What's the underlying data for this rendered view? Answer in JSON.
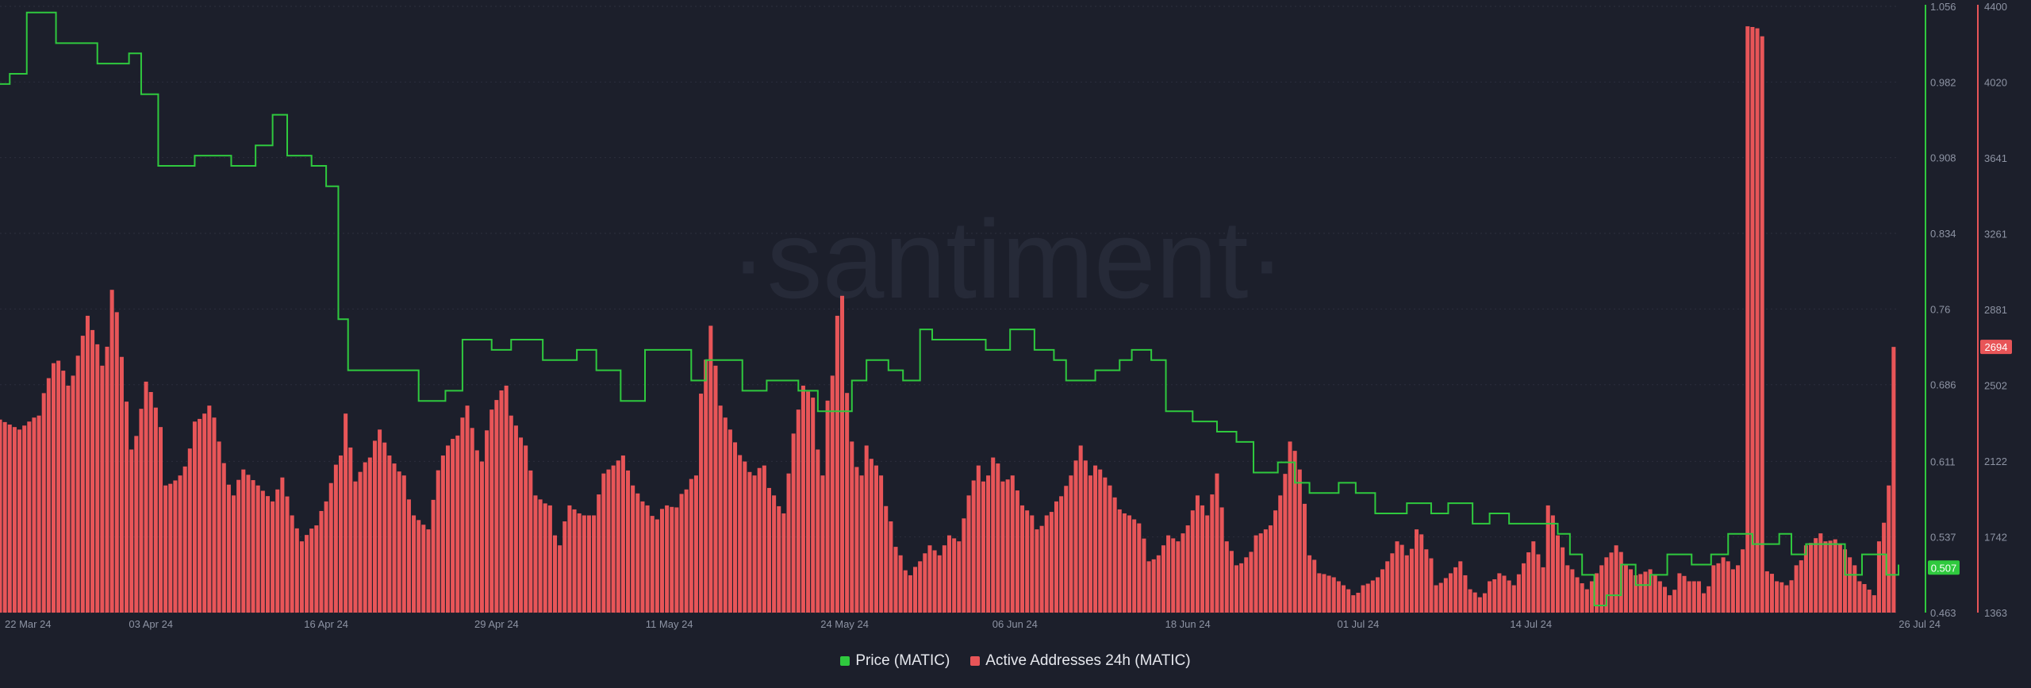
{
  "chart_data": {
    "type": "bar+line",
    "watermark": "·santiment·",
    "x_ticks": [
      "22 Mar 24",
      "03 Apr 24",
      "16 Apr 24",
      "29 Apr 24",
      "11 May 24",
      "24 May 24",
      "06 Jun 24",
      "18 Jun 24",
      "01 Jul 24",
      "14 Jul 24",
      "26 Jul 24"
    ],
    "price_axis": {
      "ticks": [
        "1.056",
        "0.982",
        "0.908",
        "0.834",
        "0.76",
        "0.686",
        "0.611",
        "0.537",
        "0.463"
      ],
      "ylim": [
        0.463,
        1.056
      ]
    },
    "addresses_axis": {
      "ticks": [
        "4400",
        "4020",
        "3641",
        "3261",
        "2881",
        "2502",
        "2122",
        "1742",
        "1363"
      ],
      "ylim": [
        1363,
        4400
      ]
    },
    "last_values": {
      "price": "0.507",
      "addresses": "2694"
    },
    "price_anchors": [
      [
        0,
        0.98
      ],
      [
        0.4,
        0.99
      ],
      [
        1.1,
        1.05
      ],
      [
        2.3,
        1.02
      ],
      [
        4.0,
        1.0
      ],
      [
        5.3,
        1.01
      ],
      [
        5.8,
        0.97
      ],
      [
        6.5,
        0.9
      ],
      [
        8.0,
        0.91
      ],
      [
        9.5,
        0.9
      ],
      [
        10.5,
        0.92
      ],
      [
        11.2,
        0.95
      ],
      [
        11.8,
        0.91
      ],
      [
        12.8,
        0.9
      ],
      [
        13.4,
        0.88
      ],
      [
        13.9,
        0.75
      ],
      [
        14.3,
        0.7
      ],
      [
        16.5,
        0.7
      ],
      [
        17.2,
        0.67
      ],
      [
        18.3,
        0.68
      ],
      [
        19.0,
        0.73
      ],
      [
        20.2,
        0.72
      ],
      [
        21.0,
        0.73
      ],
      [
        22.3,
        0.71
      ],
      [
        23.7,
        0.72
      ],
      [
        24.5,
        0.7
      ],
      [
        25.5,
        0.67
      ],
      [
        26.5,
        0.72
      ],
      [
        27.8,
        0.72
      ],
      [
        28.4,
        0.69
      ],
      [
        29.0,
        0.71
      ],
      [
        30.5,
        0.68
      ],
      [
        31.5,
        0.69
      ],
      [
        32.8,
        0.68
      ],
      [
        33.6,
        0.66
      ],
      [
        34.2,
        0.66
      ],
      [
        35.0,
        0.69
      ],
      [
        35.6,
        0.71
      ],
      [
        36.5,
        0.7
      ],
      [
        37.1,
        0.69
      ],
      [
        37.8,
        0.74
      ],
      [
        38.3,
        0.73
      ],
      [
        39.5,
        0.73
      ],
      [
        40.5,
        0.72
      ],
      [
        41.5,
        0.74
      ],
      [
        42.5,
        0.72
      ],
      [
        43.3,
        0.71
      ],
      [
        43.8,
        0.69
      ],
      [
        45.0,
        0.7
      ],
      [
        46.0,
        0.71
      ],
      [
        46.5,
        0.72
      ],
      [
        47.3,
        0.71
      ],
      [
        47.9,
        0.66
      ],
      [
        49.0,
        0.65
      ],
      [
        50.0,
        0.64
      ],
      [
        50.8,
        0.63
      ],
      [
        51.5,
        0.6
      ],
      [
        52.5,
        0.61
      ],
      [
        53.2,
        0.59
      ],
      [
        53.8,
        0.58
      ],
      [
        55.0,
        0.59
      ],
      [
        55.7,
        0.58
      ],
      [
        56.5,
        0.56
      ],
      [
        57.8,
        0.57
      ],
      [
        58.8,
        0.56
      ],
      [
        59.5,
        0.57
      ],
      [
        60.5,
        0.55
      ],
      [
        61.2,
        0.56
      ],
      [
        62.0,
        0.55
      ],
      [
        63.5,
        0.55
      ],
      [
        64.0,
        0.54
      ],
      [
        64.5,
        0.52
      ],
      [
        65.0,
        0.5
      ],
      [
        65.5,
        0.47
      ],
      [
        66.0,
        0.48
      ],
      [
        66.6,
        0.51
      ],
      [
        67.2,
        0.49
      ],
      [
        67.8,
        0.5
      ],
      [
        68.5,
        0.52
      ],
      [
        69.5,
        0.51
      ],
      [
        70.3,
        0.52
      ],
      [
        71.0,
        0.54
      ],
      [
        72.0,
        0.53
      ],
      [
        73.1,
        0.54
      ],
      [
        73.6,
        0.52
      ],
      [
        74.2,
        0.53
      ],
      [
        75.0,
        0.53
      ],
      [
        75.8,
        0.5
      ],
      [
        76.5,
        0.52
      ],
      [
        77.5,
        0.5
      ],
      [
        78.0,
        0.51
      ]
    ],
    "address_anchors": [
      [
        0,
        2330
      ],
      [
        0.8,
        2280
      ],
      [
        1.5,
        2350
      ],
      [
        2.3,
        2650
      ],
      [
        2.9,
        2500
      ],
      [
        3.6,
        2850
      ],
      [
        4.3,
        2600
      ],
      [
        4.7,
        2980
      ],
      [
        5.2,
        2420
      ],
      [
        5.5,
        2180
      ],
      [
        6.0,
        2520
      ],
      [
        6.5,
        2390
      ],
      [
        6.9,
        2000
      ],
      [
        7.5,
        2050
      ],
      [
        8.1,
        2320
      ],
      [
        8.7,
        2400
      ],
      [
        9.0,
        2220
      ],
      [
        9.5,
        1950
      ],
      [
        10.0,
        2080
      ],
      [
        10.6,
        2000
      ],
      [
        11.2,
        1920
      ],
      [
        11.6,
        2040
      ],
      [
        12.0,
        1850
      ],
      [
        12.4,
        1720
      ],
      [
        12.9,
        1800
      ],
      [
        13.4,
        1920
      ],
      [
        13.9,
        2150
      ],
      [
        14.2,
        2360
      ],
      [
        14.6,
        2020
      ],
      [
        15.1,
        2140
      ],
      [
        15.6,
        2280
      ],
      [
        16.0,
        2150
      ],
      [
        16.5,
        2050
      ],
      [
        17.0,
        1850
      ],
      [
        17.6,
        1780
      ],
      [
        18.1,
        2150
      ],
      [
        18.7,
        2250
      ],
      [
        19.2,
        2400
      ],
      [
        19.7,
        2120
      ],
      [
        20.2,
        2380
      ],
      [
        20.7,
        2500
      ],
      [
        21.1,
        2300
      ],
      [
        21.6,
        2200
      ],
      [
        22.0,
        1950
      ],
      [
        22.5,
        1900
      ],
      [
        22.9,
        1700
      ],
      [
        23.4,
        1900
      ],
      [
        23.9,
        1850
      ],
      [
        24.4,
        1850
      ],
      [
        24.8,
        2060
      ],
      [
        25.2,
        2100
      ],
      [
        25.6,
        2150
      ],
      [
        26.0,
        2000
      ],
      [
        26.5,
        1900
      ],
      [
        26.9,
        1830
      ],
      [
        27.3,
        1900
      ],
      [
        27.7,
        1890
      ],
      [
        28.1,
        1980
      ],
      [
        28.5,
        2050
      ],
      [
        28.8,
        2460
      ],
      [
        29.2,
        2800
      ],
      [
        29.6,
        2400
      ],
      [
        30.0,
        2280
      ],
      [
        30.5,
        2120
      ],
      [
        30.9,
        2050
      ],
      [
        31.3,
        2100
      ],
      [
        31.7,
        1950
      ],
      [
        32.2,
        1860
      ],
      [
        32.6,
        2260
      ],
      [
        33.0,
        2500
      ],
      [
        33.4,
        2440
      ],
      [
        33.7,
        2050
      ],
      [
        34.1,
        2550
      ],
      [
        34.3,
        2850
      ],
      [
        34.6,
        2950
      ],
      [
        34.9,
        2220
      ],
      [
        35.3,
        2050
      ],
      [
        35.6,
        2200
      ],
      [
        35.9,
        2100
      ],
      [
        36.2,
        2050
      ],
      [
        36.5,
        1820
      ],
      [
        36.9,
        1650
      ],
      [
        37.3,
        1550
      ],
      [
        37.8,
        1620
      ],
      [
        38.2,
        1700
      ],
      [
        38.6,
        1650
      ],
      [
        39.0,
        1750
      ],
      [
        39.4,
        1720
      ],
      [
        39.8,
        1950
      ],
      [
        40.2,
        2100
      ],
      [
        40.5,
        2020
      ],
      [
        40.9,
        2140
      ],
      [
        41.3,
        2020
      ],
      [
        41.6,
        2050
      ],
      [
        42.0,
        1900
      ],
      [
        42.4,
        1850
      ],
      [
        42.7,
        1780
      ],
      [
        43.1,
        1850
      ],
      [
        43.5,
        1920
      ],
      [
        44.0,
        2050
      ],
      [
        44.4,
        2200
      ],
      [
        44.8,
        2050
      ],
      [
        45.1,
        2100
      ],
      [
        45.6,
        2000
      ],
      [
        46.0,
        1880
      ],
      [
        46.3,
        1860
      ],
      [
        46.8,
        1810
      ],
      [
        47.3,
        1620
      ],
      [
        47.6,
        1650
      ],
      [
        48.0,
        1750
      ],
      [
        48.4,
        1720
      ],
      [
        48.8,
        1800
      ],
      [
        49.2,
        1950
      ],
      [
        49.6,
        1850
      ],
      [
        50.0,
        2060
      ],
      [
        50.4,
        1720
      ],
      [
        50.9,
        1600
      ],
      [
        51.3,
        1640
      ],
      [
        51.7,
        1750
      ],
      [
        52.2,
        1800
      ],
      [
        52.6,
        1950
      ],
      [
        53.1,
        2220
      ],
      [
        53.4,
        2080
      ],
      [
        53.9,
        1650
      ],
      [
        54.3,
        1560
      ],
      [
        54.8,
        1540
      ],
      [
        55.2,
        1500
      ],
      [
        55.7,
        1450
      ],
      [
        56.1,
        1500
      ],
      [
        56.6,
        1540
      ],
      [
        57.0,
        1620
      ],
      [
        57.5,
        1720
      ],
      [
        57.9,
        1650
      ],
      [
        58.3,
        1780
      ],
      [
        58.7,
        1680
      ],
      [
        59.1,
        1500
      ],
      [
        59.6,
        1560
      ],
      [
        60.0,
        1620
      ],
      [
        60.4,
        1480
      ],
      [
        60.9,
        1440
      ],
      [
        61.3,
        1520
      ],
      [
        61.7,
        1560
      ],
      [
        62.2,
        1500
      ],
      [
        62.6,
        1610
      ],
      [
        63.0,
        1720
      ],
      [
        63.4,
        1590
      ],
      [
        63.7,
        1900
      ],
      [
        64.0,
        1750
      ],
      [
        64.5,
        1600
      ],
      [
        64.8,
        1540
      ],
      [
        65.2,
        1480
      ],
      [
        65.6,
        1560
      ],
      [
        66.0,
        1640
      ],
      [
        66.5,
        1700
      ],
      [
        66.8,
        1600
      ],
      [
        67.3,
        1550
      ],
      [
        67.8,
        1580
      ],
      [
        68.2,
        1520
      ],
      [
        68.7,
        1450
      ],
      [
        69.1,
        1560
      ],
      [
        69.4,
        1520
      ],
      [
        69.8,
        1520
      ],
      [
        70.1,
        1460
      ],
      [
        70.5,
        1600
      ],
      [
        70.9,
        1640
      ],
      [
        71.2,
        1580
      ],
      [
        71.5,
        1600
      ],
      [
        71.7,
        1680
      ],
      [
        71.9,
        4300
      ],
      [
        72.2,
        4290
      ],
      [
        72.5,
        4250
      ],
      [
        72.7,
        1570
      ],
      [
        73.1,
        1520
      ],
      [
        73.5,
        1500
      ],
      [
        73.9,
        1600
      ],
      [
        74.3,
        1700
      ],
      [
        74.8,
        1760
      ],
      [
        75.1,
        1720
      ],
      [
        75.4,
        1730
      ],
      [
        75.8,
        1680
      ],
      [
        76.2,
        1600
      ],
      [
        76.5,
        1520
      ],
      [
        77.0,
        1450
      ],
      [
        77.3,
        1720
      ],
      [
        77.6,
        2000
      ],
      [
        77.8,
        2694
      ]
    ]
  },
  "legend": {
    "price_label": "Price (MATIC)",
    "price_color": "#2fc93e",
    "addresses_label": "Active Addresses 24h (MATIC)",
    "addresses_color": "#e85558"
  }
}
